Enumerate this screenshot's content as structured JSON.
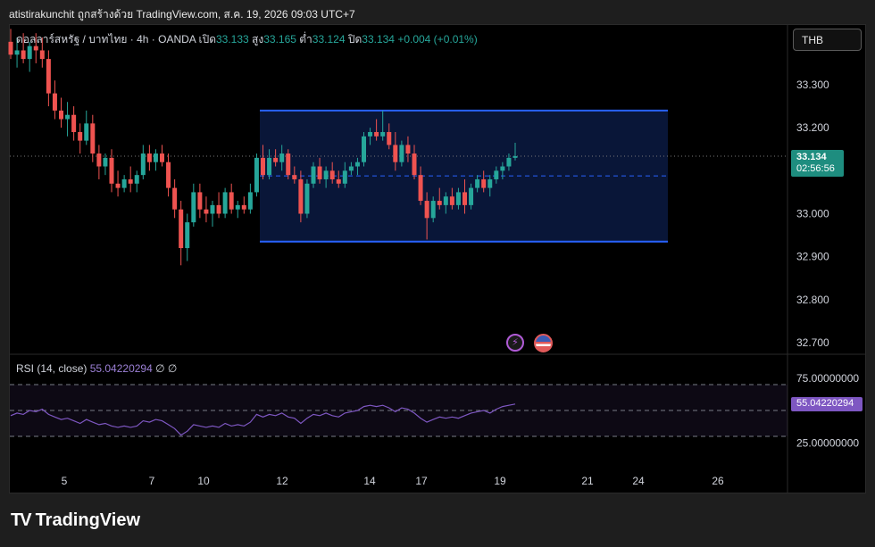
{
  "header": {
    "text": "atistirakunchit ถูกสร้างด้วย TradingView.com, ส.ค. 19, 2026 09:03 UTC+7"
  },
  "legend": {
    "symbol": "ดอลลาร์สหรัฐ / บาทไทย · 4h · OANDA",
    "open_label": "เปิด",
    "open": "33.133",
    "high_label": "สูง",
    "high": "33.165",
    "low_label": "ต่ำ",
    "low": "33.124",
    "close_label": "ปิด",
    "close": "33.134",
    "change": "+0.004 (+0.01%)"
  },
  "currency_button": "THB",
  "price_tag": {
    "price": "33.134",
    "countdown": "02:56:56"
  },
  "rsi": {
    "label": "RSI (14, close)",
    "value": "55.04220294",
    "extra": "∅ ∅",
    "tag": "55.04220294"
  },
  "logo": {
    "text": "TradingView"
  },
  "colors": {
    "up": "#26a69a",
    "down": "#ef5350",
    "box": "#2962ff",
    "rsi": "#7e57c2"
  },
  "icons": [
    "lightning-icon",
    "us-flag-icon"
  ],
  "chart_data": {
    "type": "candlestick",
    "y_ticks": [
      "33.300",
      "33.200",
      "33.100",
      "33.000",
      "32.900",
      "32.800",
      "32.700"
    ],
    "ylim": [
      32.67,
      33.42
    ],
    "x_ticks": [
      "5",
      "7",
      "10",
      "12",
      "14",
      "17",
      "19",
      "21",
      "24",
      "26"
    ],
    "rsi_ticks": [
      "75.00000000",
      "25.00000000"
    ],
    "rsi_levels": [
      70,
      50,
      30
    ],
    "range_box": {
      "top": 33.24,
      "bottom": 32.935,
      "mid": 33.088
    },
    "current_price": 33.134,
    "candles": [
      [
        33.4,
        33.43,
        33.36,
        33.37
      ],
      [
        33.37,
        33.41,
        33.34,
        33.38
      ],
      [
        33.38,
        33.42,
        33.35,
        33.36
      ],
      [
        33.36,
        33.4,
        33.33,
        33.39
      ],
      [
        33.39,
        33.42,
        33.35,
        33.38
      ],
      [
        33.38,
        33.41,
        33.34,
        33.36
      ],
      [
        33.36,
        33.38,
        33.25,
        33.28
      ],
      [
        33.28,
        33.31,
        33.22,
        33.24
      ],
      [
        33.24,
        33.27,
        33.2,
        33.22
      ],
      [
        33.22,
        33.26,
        33.18,
        33.23
      ],
      [
        33.23,
        33.25,
        33.17,
        33.19
      ],
      [
        33.19,
        33.21,
        33.14,
        33.17
      ],
      [
        33.17,
        33.24,
        33.16,
        33.21
      ],
      [
        33.21,
        33.23,
        33.12,
        33.14
      ],
      [
        33.14,
        33.16,
        33.08,
        33.11
      ],
      [
        33.11,
        33.14,
        33.09,
        33.13
      ],
      [
        33.13,
        33.15,
        33.05,
        33.07
      ],
      [
        33.07,
        33.1,
        33.04,
        33.06
      ],
      [
        33.06,
        33.09,
        33.05,
        33.08
      ],
      [
        33.08,
        33.11,
        33.05,
        33.07
      ],
      [
        33.07,
        33.1,
        33.05,
        33.09
      ],
      [
        33.09,
        33.16,
        33.08,
        33.14
      ],
      [
        33.14,
        33.16,
        33.1,
        33.12
      ],
      [
        33.12,
        33.15,
        33.1,
        33.14
      ],
      [
        33.14,
        33.16,
        33.11,
        33.12
      ],
      [
        33.12,
        33.14,
        33.04,
        33.06
      ],
      [
        33.06,
        33.08,
        32.99,
        33.01
      ],
      [
        33.01,
        33.03,
        32.88,
        32.92
      ],
      [
        32.92,
        33.0,
        32.89,
        32.98
      ],
      [
        32.98,
        33.07,
        32.97,
        33.05
      ],
      [
        33.05,
        33.07,
        32.99,
        33.01
      ],
      [
        33.01,
        33.04,
        32.98,
        33.0
      ],
      [
        33.0,
        33.03,
        32.97,
        33.02
      ],
      [
        33.02,
        33.05,
        32.99,
        33.0
      ],
      [
        33.0,
        33.06,
        32.99,
        33.05
      ],
      [
        33.05,
        33.07,
        33.0,
        33.01
      ],
      [
        33.01,
        33.03,
        32.99,
        33.02
      ],
      [
        33.02,
        33.04,
        33.0,
        33.01
      ],
      [
        33.01,
        33.07,
        33.0,
        33.05
      ],
      [
        33.05,
        33.14,
        33.04,
        33.13
      ],
      [
        33.13,
        33.16,
        33.08,
        33.09
      ],
      [
        33.09,
        33.15,
        33.08,
        33.13
      ],
      [
        33.13,
        33.15,
        33.11,
        33.12
      ],
      [
        33.12,
        33.16,
        33.1,
        33.14
      ],
      [
        33.14,
        33.15,
        33.08,
        33.09
      ],
      [
        33.09,
        33.11,
        33.07,
        33.08
      ],
      [
        33.08,
        33.1,
        32.98,
        33.0
      ],
      [
        33.0,
        33.08,
        32.99,
        33.07
      ],
      [
        33.07,
        33.12,
        33.06,
        33.11
      ],
      [
        33.11,
        33.13,
        33.07,
        33.08
      ],
      [
        33.08,
        33.11,
        33.06,
        33.1
      ],
      [
        33.1,
        33.12,
        33.07,
        33.08
      ],
      [
        33.08,
        33.1,
        33.06,
        33.07
      ],
      [
        33.07,
        33.12,
        33.06,
        33.1
      ],
      [
        33.1,
        33.12,
        33.09,
        33.11
      ],
      [
        33.11,
        33.13,
        33.09,
        33.12
      ],
      [
        33.12,
        33.19,
        33.11,
        33.18
      ],
      [
        33.18,
        33.2,
        33.16,
        33.19
      ],
      [
        33.19,
        33.22,
        33.17,
        33.18
      ],
      [
        33.18,
        33.24,
        33.17,
        33.19
      ],
      [
        33.19,
        33.21,
        33.15,
        33.16
      ],
      [
        33.16,
        33.19,
        33.1,
        33.12
      ],
      [
        33.12,
        33.17,
        33.11,
        33.16
      ],
      [
        33.16,
        33.18,
        33.12,
        33.14
      ],
      [
        33.14,
        33.16,
        33.08,
        33.09
      ],
      [
        33.09,
        33.11,
        33.02,
        33.03
      ],
      [
        33.03,
        33.05,
        32.94,
        32.99
      ],
      [
        32.99,
        33.04,
        32.98,
        33.03
      ],
      [
        33.03,
        33.06,
        33.01,
        33.02
      ],
      [
        33.02,
        33.05,
        33.0,
        33.04
      ],
      [
        33.04,
        33.06,
        33.01,
        33.02
      ],
      [
        33.02,
        33.06,
        33.01,
        33.05
      ],
      [
        33.05,
        33.08,
        33.0,
        33.02
      ],
      [
        33.02,
        33.07,
        33.01,
        33.06
      ],
      [
        33.06,
        33.09,
        33.05,
        33.08
      ],
      [
        33.08,
        33.1,
        33.05,
        33.06
      ],
      [
        33.06,
        33.09,
        33.04,
        33.08
      ],
      [
        33.08,
        33.11,
        33.07,
        33.1
      ],
      [
        33.1,
        33.12,
        33.08,
        33.11
      ],
      [
        33.11,
        33.14,
        33.1,
        33.13
      ],
      [
        33.13,
        33.165,
        33.124,
        33.134
      ]
    ],
    "rsi_values": [
      46,
      48,
      47,
      50,
      49,
      51,
      47,
      45,
      43,
      44,
      42,
      40,
      43,
      41,
      39,
      40,
      38,
      37,
      38,
      37,
      38,
      42,
      41,
      43,
      42,
      39,
      36,
      31,
      34,
      39,
      38,
      37,
      38,
      37,
      40,
      38,
      39,
      38,
      41,
      47,
      45,
      47,
      46,
      48,
      45,
      44,
      40,
      44,
      47,
      46,
      48,
      46,
      45,
      48,
      49,
      50,
      53,
      54,
      53,
      54,
      52,
      49,
      52,
      51,
      48,
      44,
      41,
      43,
      45,
      44,
      45,
      44,
      46,
      48,
      49,
      50,
      48,
      51,
      53,
      54,
      55
    ]
  }
}
